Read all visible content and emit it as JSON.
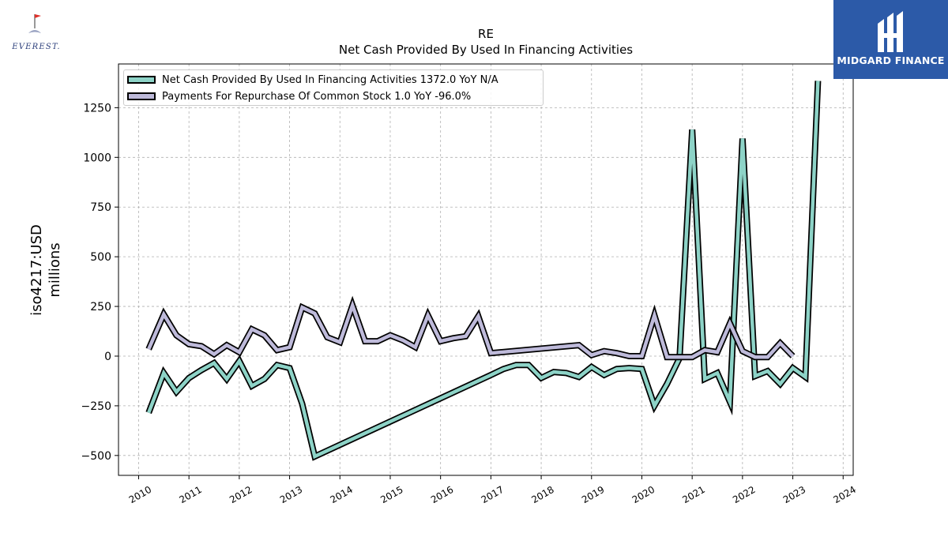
{
  "branding": {
    "left_logo_text": "EVEREST.",
    "right_logo_text": "MIDGARD FINANCE"
  },
  "colors": {
    "series_financing": "#8dd3c7",
    "series_repurchase": "#bebada",
    "outline": "#000000",
    "brand_bg": "#2c5aa8"
  },
  "chart_data": {
    "type": "line",
    "title": "RE",
    "subtitle": "Net Cash Provided By Used In Financing Activities",
    "ylabel_line1": "iso4217:USD",
    "ylabel_line2": "millions",
    "xlabel": "",
    "xlim": [
      2009.6,
      2024.2
    ],
    "ylim": [
      -600,
      1470
    ],
    "x_ticks": [
      2010,
      2011,
      2012,
      2013,
      2014,
      2015,
      2016,
      2017,
      2018,
      2019,
      2020,
      2021,
      2022,
      2023,
      2024
    ],
    "y_ticks": [
      -500,
      -250,
      0,
      250,
      500,
      750,
      1000,
      1250
    ],
    "grid": true,
    "legend_position": "top-left",
    "series": [
      {
        "name": "Net Cash Provided By Used In Financing Activities  1372.0 YoY N/A",
        "color": "#8dd3c7",
        "points": [
          [
            2010.2,
            -285
          ],
          [
            2010.5,
            -85
          ],
          [
            2010.75,
            -180
          ],
          [
            2011.0,
            -110
          ],
          [
            2011.25,
            -70
          ],
          [
            2011.5,
            -35
          ],
          [
            2011.75,
            -115
          ],
          [
            2012.0,
            -25
          ],
          [
            2012.25,
            -150
          ],
          [
            2012.5,
            -115
          ],
          [
            2012.75,
            -45
          ],
          [
            2013.0,
            -60
          ],
          [
            2013.25,
            -240
          ],
          [
            2013.5,
            -505
          ],
          [
            2017.0,
            -95
          ],
          [
            2017.25,
            -65
          ],
          [
            2017.5,
            -45
          ],
          [
            2017.75,
            -45
          ],
          [
            2018.0,
            -110
          ],
          [
            2018.25,
            -80
          ],
          [
            2018.5,
            -85
          ],
          [
            2018.75,
            -105
          ],
          [
            2019.0,
            -55
          ],
          [
            2019.25,
            -95
          ],
          [
            2019.5,
            -65
          ],
          [
            2019.75,
            -60
          ],
          [
            2020.0,
            -65
          ],
          [
            2020.25,
            -250
          ],
          [
            2020.5,
            -140
          ],
          [
            2020.75,
            -10
          ],
          [
            2021.0,
            1140
          ],
          [
            2021.25,
            -115
          ],
          [
            2021.5,
            -85
          ],
          [
            2021.75,
            -230
          ],
          [
            2022.0,
            1095
          ],
          [
            2022.25,
            -100
          ],
          [
            2022.5,
            -75
          ],
          [
            2022.75,
            -140
          ],
          [
            2023.0,
            -60
          ],
          [
            2023.25,
            -105
          ],
          [
            2023.5,
            1385
          ]
        ]
      },
      {
        "name": "Payments For Repurchase Of Common Stock  1.0 YoY -96.0%",
        "color": "#bebada",
        "points": [
          [
            2010.2,
            35
          ],
          [
            2010.5,
            210
          ],
          [
            2010.75,
            105
          ],
          [
            2011.0,
            60
          ],
          [
            2011.25,
            50
          ],
          [
            2011.5,
            10
          ],
          [
            2011.75,
            55
          ],
          [
            2012.0,
            20
          ],
          [
            2012.25,
            135
          ],
          [
            2012.5,
            105
          ],
          [
            2012.75,
            30
          ],
          [
            2013.0,
            45
          ],
          [
            2013.25,
            245
          ],
          [
            2013.5,
            215
          ],
          [
            2013.75,
            95
          ],
          [
            2014.0,
            70
          ],
          [
            2014.25,
            255
          ],
          [
            2014.5,
            75
          ],
          [
            2014.75,
            75
          ],
          [
            2015.0,
            105
          ],
          [
            2015.25,
            80
          ],
          [
            2015.5,
            45
          ],
          [
            2015.75,
            205
          ],
          [
            2016.0,
            75
          ],
          [
            2016.25,
            90
          ],
          [
            2016.5,
            100
          ],
          [
            2016.75,
            200
          ],
          [
            2017.0,
            15
          ],
          [
            2018.75,
            55
          ],
          [
            2019.0,
            5
          ],
          [
            2019.25,
            25
          ],
          [
            2019.5,
            15
          ],
          [
            2019.75,
            0
          ],
          [
            2020.0,
            0
          ],
          [
            2020.25,
            205
          ],
          [
            2020.5,
            -5
          ],
          [
            2020.75,
            -5
          ],
          [
            2021.0,
            -5
          ],
          [
            2021.25,
            30
          ],
          [
            2021.5,
            20
          ],
          [
            2021.75,
            165
          ],
          [
            2022.0,
            25
          ],
          [
            2022.25,
            -5
          ],
          [
            2022.5,
            -5
          ],
          [
            2022.75,
            65
          ],
          [
            2023.0,
            0
          ]
        ]
      }
    ]
  }
}
